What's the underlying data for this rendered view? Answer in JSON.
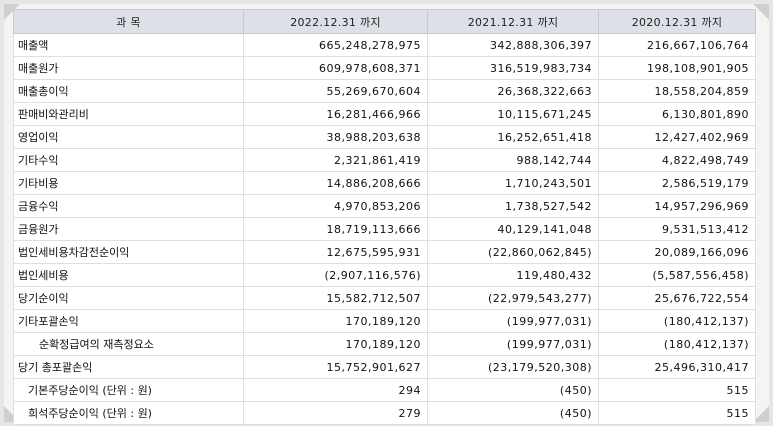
{
  "table": {
    "headers": [
      "과 목",
      "2022.12.31 까지",
      "2021.12.31 까지",
      "2020.12.31 까지"
    ],
    "rows": [
      {
        "label": "매출액",
        "v": [
          "665,248,278,975",
          "342,888,306,397",
          "216,667,106,764"
        ]
      },
      {
        "label": "매출원가",
        "v": [
          "609,978,608,371",
          "316,519,983,734",
          "198,108,901,905"
        ]
      },
      {
        "label": "매출총이익",
        "v": [
          "55,269,670,604",
          "26,368,322,663",
          "18,558,204,859"
        ]
      },
      {
        "label": "판매비와관리비",
        "v": [
          "16,281,466,966",
          "10,115,671,245",
          "6,130,801,890"
        ]
      },
      {
        "label": "영업이익",
        "v": [
          "38,988,203,638",
          "16,252,651,418",
          "12,427,402,969"
        ]
      },
      {
        "label": "기타수익",
        "v": [
          "2,321,861,419",
          "988,142,744",
          "4,822,498,749"
        ]
      },
      {
        "label": "기타비용",
        "v": [
          "14,886,208,666",
          "1,710,243,501",
          "2,586,519,179"
        ]
      },
      {
        "label": "금융수익",
        "v": [
          "4,970,853,206",
          "1,738,527,542",
          "14,957,296,969"
        ]
      },
      {
        "label": "금융원가",
        "v": [
          "18,719,113,666",
          "40,129,141,048",
          "9,531,513,412"
        ]
      },
      {
        "label": "법인세비용차감전순이익",
        "v": [
          "12,675,595,931",
          "(22,860,062,845)",
          "20,089,166,096"
        ]
      },
      {
        "label": "법인세비용",
        "v": [
          "(2,907,116,576)",
          "119,480,432",
          "(5,587,556,458)"
        ]
      },
      {
        "label": "당기순이익",
        "v": [
          "15,582,712,507",
          "(22,979,543,277)",
          "25,676,722,554"
        ]
      },
      {
        "label": "기타포괄손익",
        "v": [
          "170,189,120",
          "(199,977,031)",
          "(180,412,137)"
        ]
      },
      {
        "label": "순확정급여의 재측정요소",
        "v": [
          "170,189,120",
          "(199,977,031)",
          "(180,412,137)"
        ],
        "indent": 1
      },
      {
        "label": "당기 총포괄손익",
        "v": [
          "15,752,901,627",
          "(23,179,520,308)",
          "25,496,310,417"
        ]
      },
      {
        "label": "기본주당순이익 (단위 : 원)",
        "v": [
          "294",
          "(450)",
          "515"
        ],
        "indent": 2
      },
      {
        "label": "희석주당순이익 (단위 : 원)",
        "v": [
          "279",
          "(450)",
          "515"
        ],
        "indent": 2
      }
    ]
  }
}
